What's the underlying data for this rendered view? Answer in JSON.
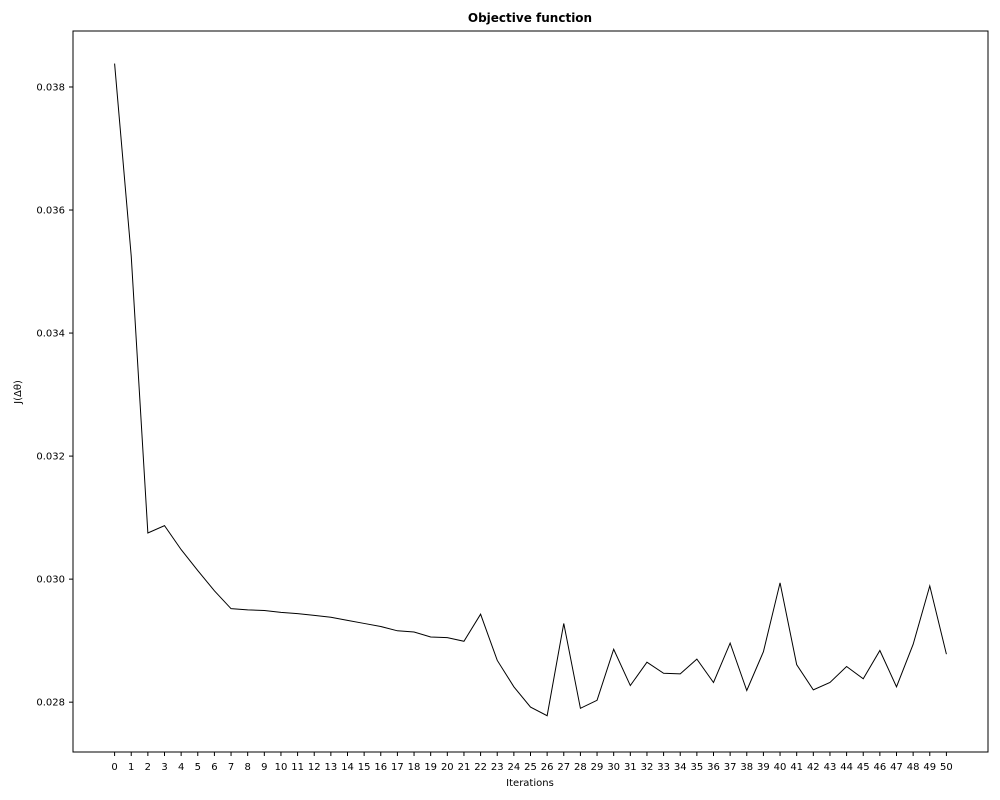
{
  "chart_data": {
    "type": "line",
    "title": "Objective function",
    "xlabel": "Iterations",
    "ylabel": "J(Δθ)",
    "x": [
      0,
      1,
      2,
      3,
      4,
      5,
      6,
      7,
      8,
      9,
      10,
      11,
      12,
      13,
      14,
      15,
      16,
      17,
      18,
      19,
      20,
      21,
      22,
      23,
      24,
      25,
      26,
      27,
      28,
      29,
      30,
      31,
      32,
      33,
      34,
      35,
      36,
      37,
      38,
      39,
      40,
      41,
      42,
      43,
      44,
      45,
      46,
      47,
      48,
      49,
      50
    ],
    "x_tick_labels": [
      "0",
      "1",
      "2",
      "3",
      "4",
      "5",
      "6",
      "7",
      "8",
      "9",
      "10",
      "11",
      "12",
      "13",
      "14",
      "15",
      "16",
      "17",
      "18",
      "19",
      "20",
      "21",
      "22",
      "23",
      "24",
      "25",
      "26",
      "27",
      "28",
      "29",
      "30",
      "31",
      "32",
      "33",
      "34",
      "35",
      "36",
      "37",
      "38",
      "39",
      "40",
      "41",
      "42",
      "43",
      "44",
      "45",
      "46",
      "47",
      "48",
      "49",
      "50"
    ],
    "series": [
      {
        "values": [
          0.03838,
          0.03525,
          0.03075,
          0.03087,
          0.03048,
          0.03014,
          0.02981,
          0.02952,
          0.0295,
          0.02949,
          0.02946,
          0.02944,
          0.02941,
          0.02938,
          0.02933,
          0.02928,
          0.02923,
          0.02916,
          0.02914,
          0.02906,
          0.02905,
          0.02899,
          0.02943,
          0.02868,
          0.02825,
          0.02792,
          0.02778,
          0.02928,
          0.0279,
          0.02803,
          0.02886,
          0.02827,
          0.02865,
          0.02847,
          0.02846,
          0.0287,
          0.02832,
          0.02896,
          0.02819,
          0.02882,
          0.02994,
          0.02861,
          0.0282,
          0.02832,
          0.02858,
          0.02838,
          0.02884,
          0.02825,
          0.02894,
          0.02989,
          0.02878
        ],
        "color": "#000000"
      }
    ],
    "y_ticks": [
      0.028,
      0.03,
      0.032,
      0.034,
      0.036,
      0.038
    ],
    "y_tick_labels": [
      "0.028",
      "0.030",
      "0.032",
      "0.034",
      "0.036",
      "0.038"
    ],
    "ylim": [
      0.02719,
      0.03891
    ],
    "xlim": [
      -2.5,
      52.5
    ],
    "grid": false,
    "legend": "none"
  }
}
